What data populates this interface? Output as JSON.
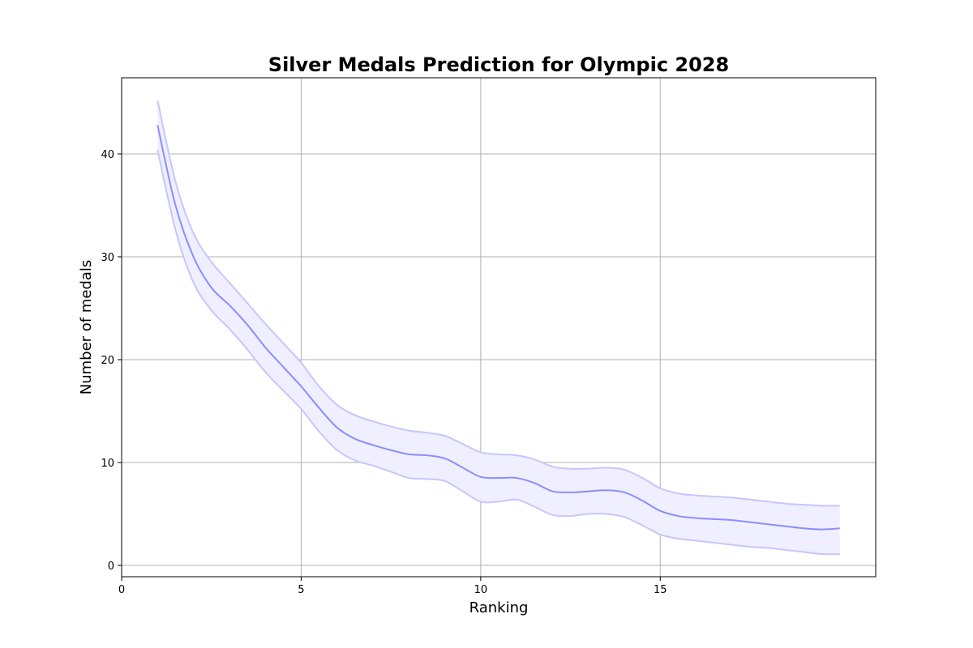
{
  "chart_data": {
    "type": "line",
    "title": "Silver Medals Prediction for Olympic 2028",
    "xlabel": "Ranking",
    "ylabel": "Number of medals",
    "xlim": [
      0,
      21
    ],
    "ylim": [
      -1.1,
      47.4
    ],
    "xticks": [
      0,
      5,
      10,
      15
    ],
    "yticks": [
      0,
      10,
      20,
      30,
      40
    ],
    "grid": true,
    "legend": "none",
    "colors": {
      "line": "#8c8cff",
      "band_fill": "#efefff",
      "band_edge": "#c6c6ff"
    },
    "series": [
      {
        "x": [
          1,
          1.5,
          2,
          2.5,
          3,
          3.5,
          4,
          4.5,
          5,
          5.5,
          6,
          6.5,
          7,
          7.5,
          8,
          8.5,
          9,
          9.5,
          10,
          10.5,
          11,
          11.5,
          12,
          12.5,
          13,
          13.5,
          14,
          14.5,
          15,
          15.5,
          16,
          16.5,
          17,
          17.5,
          18,
          18.5,
          19,
          19.5,
          20
        ],
        "values": [
          42.8,
          35.0,
          30.0,
          27.0,
          25.3,
          23.4,
          21.2,
          19.3,
          17.4,
          15.3,
          13.4,
          12.3,
          11.7,
          11.2,
          10.8,
          10.7,
          10.4,
          9.5,
          8.6,
          8.5,
          8.5,
          8.0,
          7.2,
          7.1,
          7.2,
          7.3,
          7.1,
          6.3,
          5.3,
          4.8,
          4.6,
          4.5,
          4.4,
          4.2,
          4.0,
          3.8,
          3.6,
          3.5,
          3.6
        ],
        "lower": [
          40.4,
          32.6,
          27.5,
          24.8,
          23.0,
          21.0,
          18.8,
          17.0,
          15.2,
          13.0,
          11.2,
          10.2,
          9.7,
          9.1,
          8.5,
          8.4,
          8.2,
          7.2,
          6.2,
          6.2,
          6.4,
          5.7,
          4.9,
          4.8,
          5.0,
          5.0,
          4.7,
          3.9,
          3.0,
          2.6,
          2.4,
          2.2,
          2.0,
          1.8,
          1.7,
          1.5,
          1.3,
          1.1,
          1.1
        ],
        "upper": [
          45.2,
          37.3,
          32.3,
          29.5,
          27.5,
          25.5,
          23.5,
          21.6,
          19.7,
          17.4,
          15.6,
          14.6,
          14.0,
          13.5,
          13.1,
          12.9,
          12.6,
          11.8,
          11.0,
          10.8,
          10.7,
          10.3,
          9.6,
          9.4,
          9.4,
          9.5,
          9.3,
          8.5,
          7.5,
          7.0,
          6.8,
          6.7,
          6.6,
          6.4,
          6.2,
          6.0,
          5.9,
          5.8,
          5.8
        ]
      }
    ]
  }
}
